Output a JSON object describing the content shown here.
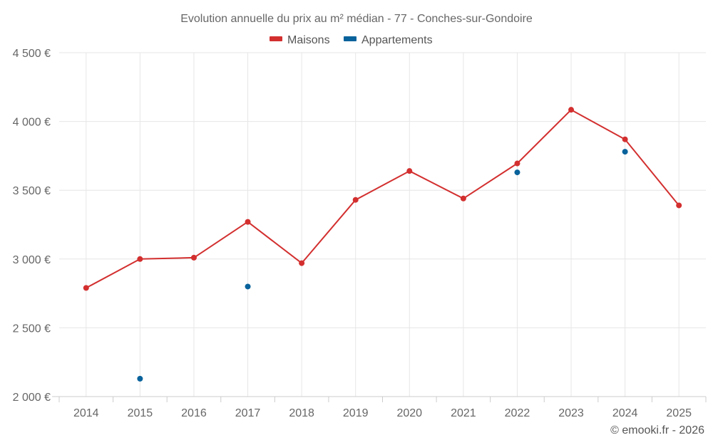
{
  "chart_data": {
    "type": "line",
    "title": "Evolution annuelle du prix au m² médian - 77 - Conches-sur-Gondoire",
    "categories": [
      "2014",
      "2015",
      "2016",
      "2017",
      "2018",
      "2019",
      "2020",
      "2021",
      "2022",
      "2023",
      "2024",
      "2025"
    ],
    "y_ticks": [
      "2 000 €",
      "2 500 €",
      "3 000 €",
      "3 500 €",
      "4 000 €",
      "4 500 €"
    ],
    "y_tick_values": [
      2000,
      2500,
      3000,
      3500,
      4000,
      4500
    ],
    "ylim": [
      2000,
      4500
    ],
    "grid": true,
    "legend_position": "top-center",
    "series": [
      {
        "name": "Maisons",
        "color": "#d32f2f",
        "line": true,
        "values": [
          2790,
          3000,
          3010,
          3270,
          2970,
          3430,
          3640,
          3440,
          3695,
          4085,
          3870,
          3390
        ]
      },
      {
        "name": "Appartements",
        "color": "#08629b",
        "line": false,
        "values": [
          null,
          2130,
          null,
          2800,
          null,
          null,
          null,
          null,
          3630,
          null,
          3780,
          null
        ]
      }
    ]
  },
  "credit": "© emooki.fr - 2026"
}
